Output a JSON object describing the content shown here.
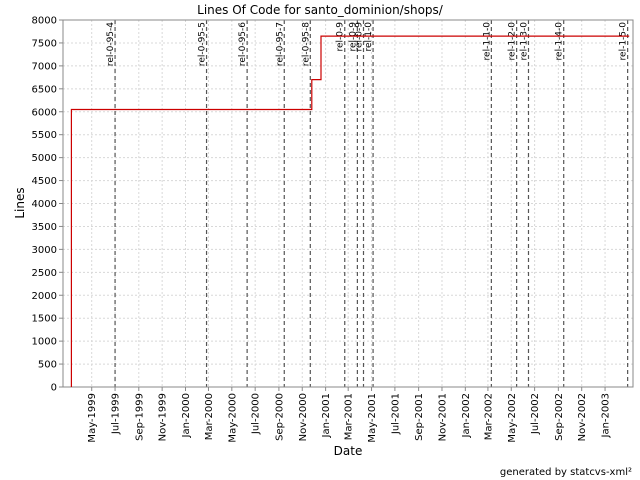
{
  "chart_data": {
    "type": "line",
    "title": "Lines Of Code for santo_dominion/shops/",
    "xlabel": "Date",
    "ylabel": "Lines",
    "ylim": [
      0,
      8000
    ],
    "y_ticks": [
      0,
      500,
      1000,
      1500,
      2000,
      2500,
      3000,
      3500,
      4000,
      4500,
      5000,
      5500,
      6000,
      6500,
      7000,
      7500,
      8000
    ],
    "xlim": [
      "1999-02-15",
      "2003-03-15"
    ],
    "x_ticks": [
      {
        "date": "1999-05-01",
        "label": "May-1999"
      },
      {
        "date": "1999-07-01",
        "label": "Jul-1999"
      },
      {
        "date": "1999-09-01",
        "label": "Sep-1999"
      },
      {
        "date": "1999-11-01",
        "label": "Nov-1999"
      },
      {
        "date": "2000-01-01",
        "label": "Jan-2000"
      },
      {
        "date": "2000-03-01",
        "label": "Mar-2000"
      },
      {
        "date": "2000-05-01",
        "label": "May-2000"
      },
      {
        "date": "2000-07-01",
        "label": "Jul-2000"
      },
      {
        "date": "2000-09-01",
        "label": "Sep-2000"
      },
      {
        "date": "2000-11-01",
        "label": "Nov-2000"
      },
      {
        "date": "2001-01-01",
        "label": "Jan-2001"
      },
      {
        "date": "2001-03-01",
        "label": "Mar-2001"
      },
      {
        "date": "2001-05-01",
        "label": "May-2001"
      },
      {
        "date": "2001-07-01",
        "label": "Jul-2001"
      },
      {
        "date": "2001-09-01",
        "label": "Sep-2001"
      },
      {
        "date": "2001-11-01",
        "label": "Nov-2001"
      },
      {
        "date": "2002-01-01",
        "label": "Jan-2002"
      },
      {
        "date": "2002-03-01",
        "label": "Mar-2002"
      },
      {
        "date": "2002-05-01",
        "label": "May-2002"
      },
      {
        "date": "2002-07-01",
        "label": "Jul-2002"
      },
      {
        "date": "2002-09-01",
        "label": "Sep-2002"
      },
      {
        "date": "2002-11-01",
        "label": "Nov-2002"
      },
      {
        "date": "2003-01-01",
        "label": "Jan-2003"
      }
    ],
    "series": [
      {
        "name": "",
        "color": "#cc0000",
        "step": true,
        "points": [
          {
            "date": "1999-03-09",
            "value": 0
          },
          {
            "date": "1999-03-09",
            "value": 6050
          },
          {
            "date": "2000-11-26",
            "value": 6050
          },
          {
            "date": "2000-11-26",
            "value": 6700
          },
          {
            "date": "2000-12-20",
            "value": 6700
          },
          {
            "date": "2000-12-20",
            "value": 7650
          },
          {
            "date": "2003-03-05",
            "value": 7650
          }
        ]
      }
    ],
    "release_markers": [
      {
        "date": "1999-07-01",
        "label": "rel-0-95-4"
      },
      {
        "date": "2000-02-25",
        "label": "rel-0-95-5"
      },
      {
        "date": "2000-06-10",
        "label": "rel-0-95-6"
      },
      {
        "date": "2000-09-15",
        "label": "rel-0-95-7"
      },
      {
        "date": "2000-11-22",
        "label": "rel-0-95-8"
      },
      {
        "date": "2001-02-20",
        "label": "rel-0-9"
      },
      {
        "date": "2001-03-25",
        "label": "rel-0-9"
      },
      {
        "date": "2001-04-10",
        "label": "rel-0-9"
      },
      {
        "date": "2001-05-05",
        "label": "rel-1-0"
      },
      {
        "date": "2002-03-10",
        "label": "rel-1-1-0"
      },
      {
        "date": "2002-05-15",
        "label": "rel-1-2-0"
      },
      {
        "date": "2002-06-15",
        "label": "rel-1-3-0"
      },
      {
        "date": "2002-09-15",
        "label": "rel-1-4-0"
      },
      {
        "date": "2003-03-01",
        "label": "rel-1-5-0"
      }
    ],
    "grid": true
  },
  "footer": "generated by statcvs-xml²"
}
